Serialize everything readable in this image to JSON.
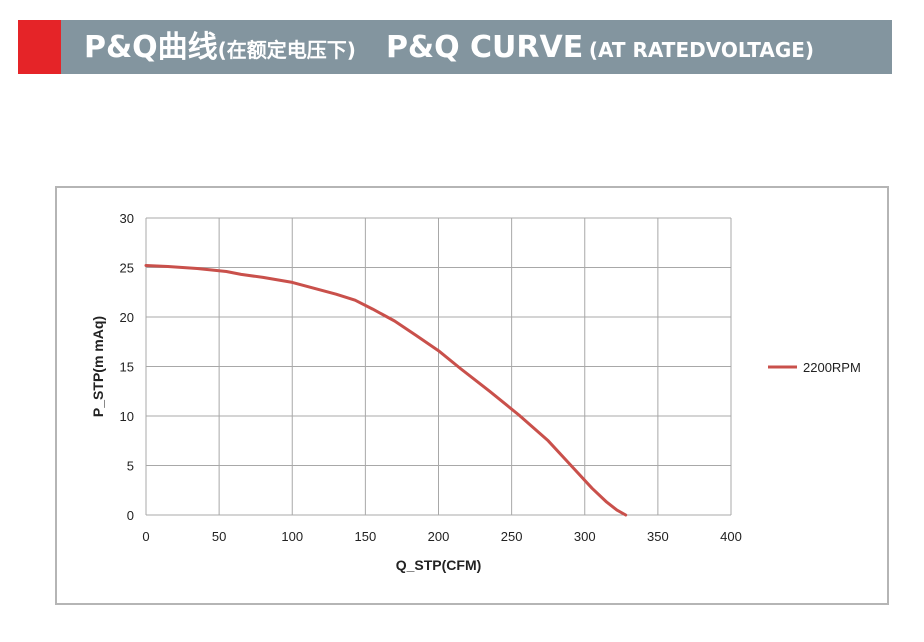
{
  "banner": {
    "title_main": "P&Q曲线",
    "title_sub": "(在额定电压下)",
    "title_en_main": "P&Q CURVE",
    "title_en_sub": "(AT RATEDVOLTAGE)",
    "accent_color": "#e52428",
    "bg_color": "#83959f"
  },
  "chart_data": {
    "type": "line",
    "xlabel": "Q_STP(CFM)",
    "ylabel": "P_STP(m mAq)",
    "xlim": [
      0,
      400
    ],
    "ylim": [
      0,
      30
    ],
    "xticks": [
      0,
      50,
      100,
      150,
      200,
      250,
      300,
      350,
      400
    ],
    "yticks": [
      0,
      5,
      10,
      15,
      20,
      25,
      30
    ],
    "grid": true,
    "legend_position": "right",
    "series": [
      {
        "name": "2200RPM",
        "color": "#c9504b",
        "x": [
          0,
          15,
          35,
          55,
          65,
          80,
          100,
          115,
          130,
          143,
          155,
          170,
          185,
          200,
          215,
          235,
          255,
          275,
          290,
          305,
          315,
          322,
          328
        ],
        "y": [
          25.2,
          25.1,
          24.9,
          24.6,
          24.3,
          24.0,
          23.5,
          22.9,
          22.3,
          21.7,
          20.8,
          19.6,
          18.1,
          16.6,
          14.8,
          12.5,
          10.1,
          7.5,
          5.1,
          2.7,
          1.3,
          0.5,
          0.0
        ]
      }
    ]
  }
}
